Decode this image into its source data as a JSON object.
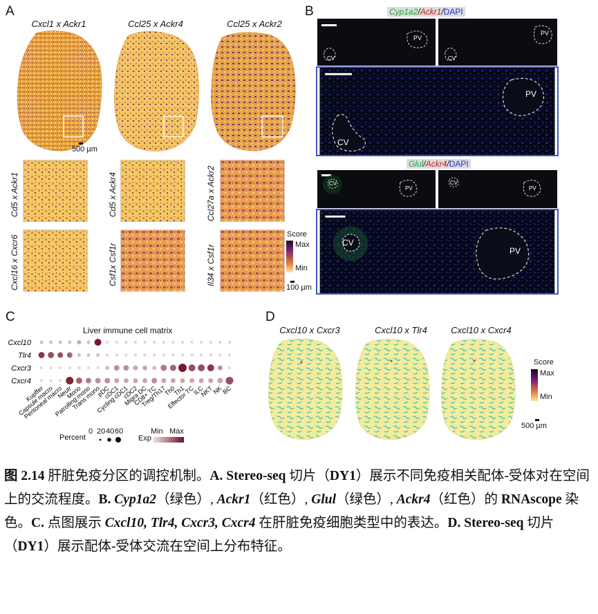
{
  "panel_a": {
    "label": "A",
    "titles": [
      "Cxcl1 x Ackr1",
      "Ccl25 x Ackr4",
      "Ccl25 x Ackr2"
    ],
    "scalebar_label": "500 µm",
    "row2_labels": [
      "Cd5 x Ackr1",
      "Cd5 x Ackr4",
      "Ccl27a x Ackr2"
    ],
    "row3_labels": [
      "Cxcl16 x Cxcr6",
      "Csf1x Csf1r",
      "Il34 x Csf1r"
    ],
    "legend": {
      "title": "Score",
      "max": "Max",
      "min": "Min",
      "scalebar": "100 µm"
    }
  },
  "panel_b": {
    "label": "B",
    "top_title": {
      "g1": "Cyp1a2",
      "sep1": "/",
      "r1": "Ackr1",
      "sep2": "/",
      "b1": "DAPI"
    },
    "bottom_title": {
      "g1": "Glul",
      "sep1": "/",
      "r1": "Ackr4",
      "sep2": "/",
      "b1": "DAPI"
    },
    "cv": "CV",
    "pv": "PV"
  },
  "panel_c": {
    "label": "C",
    "title": "Liver immune cell matrix",
    "rows": [
      "Cxcl10",
      "Tlr4",
      "Cxcr3",
      "Cxcr4"
    ],
    "columns": [
      "Kupffer",
      "Capsule macro",
      "Peritoneal macro",
      "Neutr",
      "Mono",
      "Patrolling mono",
      "Trans mono",
      "pDC",
      "cDC1",
      "Cycling cDC1",
      "cDC2",
      "Migra DC",
      "CD8+ TC",
      "Treg/Th17",
      "Th0",
      "Th1",
      "Effector TC",
      "ILC",
      "NKT",
      "NK",
      "BC"
    ],
    "legend": {
      "percent_label": "Percent",
      "percent_values": [
        "0",
        "20",
        "40",
        "60"
      ],
      "exp_label": "Exp",
      "exp_min": "Min",
      "exp_max": "Max"
    },
    "colors": {
      "low": "#efe4e6",
      "high": "#6e0f22"
    }
  },
  "panel_d": {
    "label": "D",
    "titles": [
      "Cxcl10 x Cxcr3",
      "Cxcl10 x Tlr4",
      "Cxcl10 x Cxcr4"
    ],
    "legend": {
      "title": "Score",
      "max": "Max",
      "min": "Min",
      "scalebar": "500 µm"
    }
  },
  "caption": {
    "fig": "图 2.14",
    "t1": " 肝脏免疫分区的调控机制。",
    "a": "A. Stereo-seq",
    "t2": " 切片（",
    "dy1": "DY1",
    "t3": "）展示不同免疫相关配体-受体对在空间上的交流程度。",
    "b": "B.",
    "g1": " Cyp1a2",
    "t4": "（绿色）, ",
    "g2": "Ackr1",
    "t5": "（红色）, ",
    "g3": "Glul",
    "t6": "（绿色）, ",
    "g4": "Ackr4",
    "t7": "（红色）的 ",
    "rna": "RNAscope",
    "t8": " 染色。",
    "c": "C.",
    "t9": " 点图展示 ",
    "genes": "Cxcl10, Tlr4, Cxcr3, Cxcr4",
    "t10": " 在肝脏免疫细胞类型中的表达。",
    "d": "D. Stereo-seq",
    "t11": " 切片（",
    "dy1b": "DY1",
    "t12": "）展示配体-受体交流在空间上分布特征。"
  }
}
